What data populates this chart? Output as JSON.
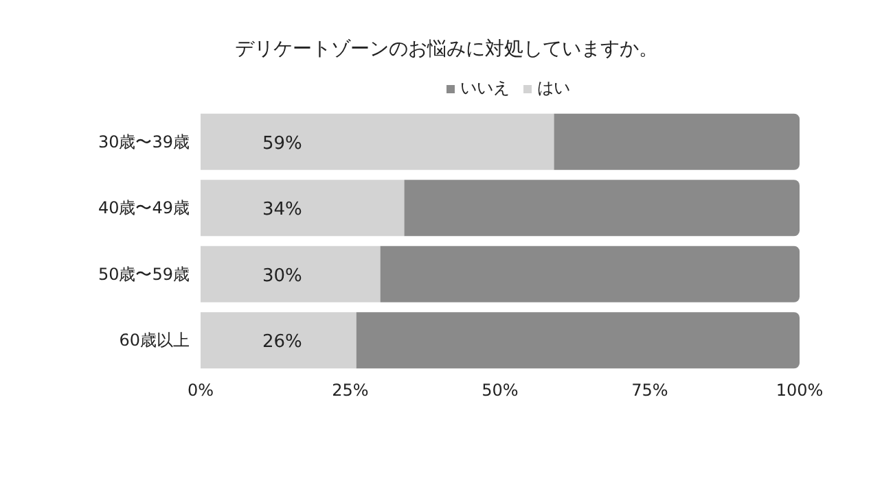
{
  "chart_data": {
    "type": "bar",
    "orientation": "horizontal",
    "stacked": true,
    "title": "デリケートゾーンのお悩みに対処していますか。",
    "categories": [
      "30歳〜39歳",
      "40歳〜49歳",
      "50歳〜59歳",
      "60歳以上"
    ],
    "series": [
      {
        "name": "はい",
        "color": "#d3d3d3",
        "values": [
          59,
          34,
          30,
          26
        ],
        "value_labels": [
          "59%",
          "34%",
          "30%",
          "26%"
        ]
      },
      {
        "name": "いいえ",
        "color": "#8a8a8a",
        "values": [
          41,
          66,
          70,
          74
        ]
      }
    ],
    "xlim": [
      0,
      100
    ],
    "xticks": [
      {
        "value": 0,
        "label": "0%"
      },
      {
        "value": 25,
        "label": "25%"
      },
      {
        "value": 50,
        "label": "50%"
      },
      {
        "value": 75,
        "label": "75%"
      },
      {
        "value": 100,
        "label": "100%"
      }
    ],
    "grid": false,
    "legend": "top"
  }
}
